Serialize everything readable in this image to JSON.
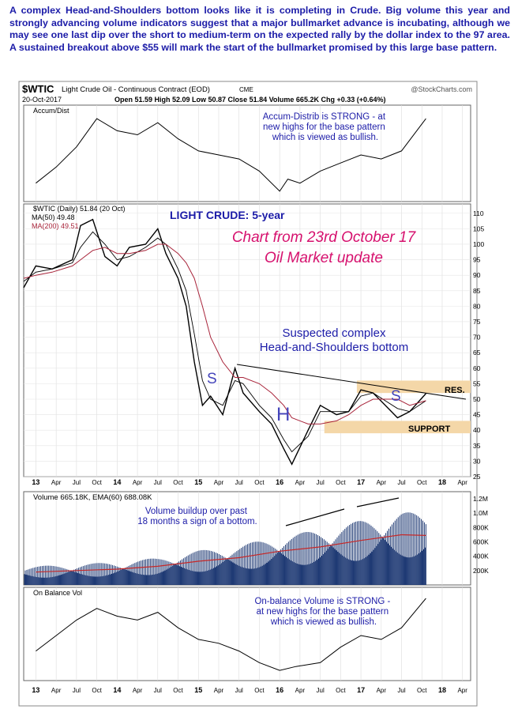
{
  "intro": "A complex Head-and-Shoulders bottom looks like it is completing in Crude. Big volume this year and strongly advancing volume indicators suggest that a major bullmarket advance is incubating, although we may see one last dip over the short to medium-term on the expected rally by the dollar index to the 97 area. A sustained breakout above $55 will mark the start of the bullmarket promised by this large base pattern.",
  "header": {
    "symbol": "$WTIC",
    "name": "Light Crude Oil - Continuous Contract (EOD)",
    "exchange": "CME",
    "credit": "@StockCharts.com",
    "date": "20-Oct-2017",
    "quote": "Open 51.59  High 52.09  Low 50.87  Close 51.84  Volume 665.2K  Chg +0.33 (+0.64%)"
  },
  "colors": {
    "text_blue": "#1c1ca8",
    "magenta": "#d6116e",
    "price": "#000000",
    "ma50": "#000000",
    "ma200": "#a8243a",
    "volume": "#1f3a74",
    "ema": "#c62828",
    "band": "#f4d7a8"
  },
  "chart_data": [
    {
      "type": "line",
      "panel": "Accum/Dist",
      "legend": "Accum/Dist",
      "annotation": "Accum-Distrib is STRONG - at new highs for the base pattern which is viewed as bullish.",
      "x": [
        2013.0,
        2013.25,
        2013.5,
        2013.75,
        2014.0,
        2014.25,
        2014.5,
        2014.75,
        2015.0,
        2015.25,
        2015.5,
        2015.75,
        2016.0,
        2016.1,
        2016.25,
        2016.5,
        2016.75,
        2017.0,
        2017.25,
        2017.5,
        2017.8
      ],
      "values": [
        0.15,
        0.35,
        0.6,
        0.95,
        0.8,
        0.75,
        0.9,
        0.7,
        0.55,
        0.5,
        0.45,
        0.3,
        0.05,
        0.2,
        0.15,
        0.3,
        0.4,
        0.5,
        0.45,
        0.55,
        0.95
      ]
    },
    {
      "type": "line",
      "panel": "Price",
      "legend": [
        "$WTIC (Daily) 51.84 (20 Oct)",
        "MA(50) 49.48",
        "MA(200) 49.51"
      ],
      "title": "LIGHT CRUDE: 5-year",
      "annotations": [
        "Chart from 23rd October 17",
        "Oil Market update",
        "Suspected complex",
        "Head-and-Shoulders bottom",
        "S",
        "H",
        "S",
        "RES.",
        "SUPPORT"
      ],
      "ylim": [
        25,
        113
      ],
      "yticks": [
        25,
        30,
        35,
        40,
        45,
        50,
        55,
        60,
        65,
        70,
        75,
        80,
        85,
        90,
        95,
        100,
        105,
        110
      ],
      "resistance_band": [
        52,
        56
      ],
      "support_band": [
        39,
        43
      ],
      "x": [
        2012.85,
        2013.0,
        2013.2,
        2013.45,
        2013.55,
        2013.7,
        2013.85,
        2014.0,
        2014.15,
        2014.35,
        2014.5,
        2014.6,
        2014.75,
        2014.85,
        2014.95,
        2015.05,
        2015.15,
        2015.3,
        2015.45,
        2015.55,
        2015.75,
        2015.9,
        2016.05,
        2016.15,
        2016.35,
        2016.5,
        2016.7,
        2016.85,
        2017.0,
        2017.15,
        2017.45,
        2017.6,
        2017.8
      ],
      "series": [
        {
          "name": "$WTIC (Daily)",
          "values": [
            86,
            93,
            92,
            95,
            106,
            108,
            96,
            93,
            99,
            100,
            105,
            97,
            89,
            80,
            62,
            48,
            51,
            45,
            60,
            52,
            46,
            42,
            34,
            29,
            40,
            48,
            45,
            46,
            53,
            52,
            44,
            46,
            51.8
          ]
        },
        {
          "name": "MA(50)",
          "values": [
            88,
            91,
            92,
            94,
            99,
            104,
            100,
            95,
            96,
            99,
            102,
            100,
            92,
            85,
            71,
            56,
            50,
            48,
            56,
            55,
            48,
            44,
            37,
            33,
            38,
            46,
            46,
            46,
            51,
            52,
            47,
            46,
            49.5
          ]
        },
        {
          "name": "MA(200)",
          "values": [
            89,
            90,
            91,
            93,
            95,
            98,
            99,
            97,
            97,
            98,
            100,
            100,
            97,
            94,
            89,
            80,
            70,
            62,
            57,
            57,
            55,
            52,
            48,
            44,
            42,
            42,
            43,
            45,
            48,
            50,
            50,
            48,
            49.5
          ]
        }
      ]
    },
    {
      "type": "bar",
      "panel": "Volume",
      "legend": "Volume 665.18K, EMA(60) 688.08K",
      "annotation": "Volume buildup over past 18 months a sign of a bottom.",
      "yticks": [
        "200K",
        "400K",
        "600K",
        "800K",
        "1.0M",
        "1.2M"
      ],
      "x": [
        2013.0,
        2013.5,
        2014.0,
        2014.5,
        2015.0,
        2015.5,
        2016.0,
        2016.5,
        2017.0,
        2017.5,
        2017.8
      ],
      "values": [
        180,
        200,
        220,
        260,
        330,
        380,
        470,
        530,
        620,
        700,
        690
      ]
    },
    {
      "type": "line",
      "panel": "On Balance Vol",
      "legend": "On Balance Vol",
      "annotation": "On-balance Volume is STRONG - at new highs for the base pattern which is viewed as bullish.",
      "x": [
        2013.0,
        2013.25,
        2013.5,
        2013.75,
        2014.0,
        2014.25,
        2014.5,
        2014.75,
        2015.0,
        2015.25,
        2015.5,
        2015.75,
        2016.0,
        2016.2,
        2016.5,
        2016.75,
        2017.0,
        2017.25,
        2017.5,
        2017.8
      ],
      "values": [
        0.3,
        0.5,
        0.7,
        0.85,
        0.75,
        0.7,
        0.8,
        0.6,
        0.45,
        0.4,
        0.3,
        0.15,
        0.05,
        0.1,
        0.15,
        0.35,
        0.5,
        0.45,
        0.6,
        0.98
      ]
    }
  ],
  "x_axis": {
    "labels": [
      "13",
      "Apr",
      "Jul",
      "Oct",
      "14",
      "Apr",
      "Jul",
      "Oct",
      "15",
      "Apr",
      "Jul",
      "Oct",
      "16",
      "Apr",
      "Jul",
      "Oct",
      "17",
      "Apr",
      "Jul",
      "Oct",
      "18",
      "Apr"
    ],
    "start": 2012.85,
    "end": 2018.35
  }
}
